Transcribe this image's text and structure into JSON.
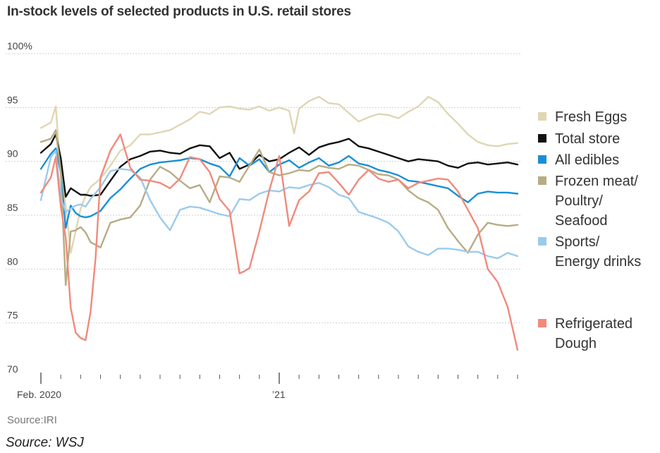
{
  "chart_data": {
    "type": "line",
    "title": "In-stock levels of selected products in U.S. retail stores",
    "ylabel": "",
    "xlabel": "",
    "ylim": [
      70,
      100
    ],
    "y_ticks": [
      "100%",
      "95",
      "90",
      "85",
      "80",
      "75",
      "70"
    ],
    "y_tick_values": [
      100,
      95,
      90,
      85,
      80,
      75,
      70
    ],
    "x_tick_labels": [
      {
        "label": "Feb. 2020",
        "x": 0
      },
      {
        "label": "’21",
        "x": 48
      }
    ],
    "x_range": [
      0,
      96
    ],
    "minor_tick_step": 4,
    "series": [
      {
        "name": "Fresh Eggs",
        "color": "#e0d6b3",
        "x": [
          0,
          2,
          3,
          4,
          5,
          6,
          7,
          8,
          9,
          10,
          12,
          14,
          16,
          18,
          20,
          22,
          24,
          26,
          28,
          30,
          32,
          34,
          36,
          38,
          40,
          42,
          44,
          46,
          48,
          50,
          51,
          52,
          54,
          56,
          58,
          60,
          62,
          64,
          66,
          68,
          70,
          72,
          74,
          76,
          78,
          80,
          82,
          84,
          86,
          88,
          90,
          92,
          94,
          96
        ],
        "values": [
          93.1,
          93.6,
          95.1,
          88.8,
          85.9,
          81.5,
          83.5,
          85.6,
          86.8,
          87.6,
          88.4,
          89.6,
          91.0,
          91.5,
          92.5,
          92.5,
          92.7,
          92.9,
          93.4,
          93.9,
          94.6,
          94.4,
          95.0,
          95.1,
          94.9,
          94.8,
          95.1,
          94.7,
          95.0,
          94.7,
          92.6,
          94.9,
          95.6,
          96.0,
          95.4,
          95.3,
          94.5,
          93.7,
          94.1,
          94.4,
          94.3,
          94.0,
          94.6,
          95.1,
          96.0,
          95.5,
          94.4,
          93.5,
          92.5,
          91.8,
          91.5,
          91.4,
          91.6,
          91.7
        ]
      },
      {
        "name": "Total store",
        "color": "#111111",
        "x": [
          0,
          2,
          3,
          4,
          5,
          6,
          7,
          8,
          9,
          10,
          12,
          14,
          16,
          18,
          20,
          22,
          24,
          26,
          28,
          30,
          32,
          34,
          36,
          38,
          40,
          42,
          44,
          46,
          48,
          50,
          52,
          54,
          56,
          58,
          60,
          62,
          64,
          66,
          68,
          70,
          72,
          74,
          76,
          78,
          80,
          82,
          84,
          86,
          88,
          90,
          92,
          94,
          95,
          96
        ],
        "values": [
          90.8,
          91.6,
          92.5,
          90.3,
          86.7,
          87.5,
          87.2,
          86.9,
          86.9,
          86.8,
          86.9,
          88.2,
          89.5,
          90.2,
          90.5,
          90.9,
          91.0,
          90.8,
          90.7,
          91.2,
          91.5,
          91.4,
          90.3,
          90.8,
          89.3,
          89.7,
          90.6,
          90.0,
          90.2,
          90.8,
          91.3,
          90.6,
          91.3,
          91.6,
          91.8,
          92.1,
          91.4,
          91.2,
          90.9,
          90.6,
          90.3,
          90.0,
          90.2,
          90.1,
          90.0,
          89.6,
          89.4,
          89.8,
          89.9,
          89.7,
          89.8,
          89.9,
          89.8,
          89.7
        ]
      },
      {
        "name": "All edibles",
        "color": "#1a8fd6",
        "x": [
          0,
          2,
          3,
          4,
          5,
          6,
          7,
          8,
          9,
          10,
          12,
          14,
          16,
          18,
          20,
          22,
          24,
          26,
          28,
          30,
          32,
          34,
          36,
          38,
          40,
          42,
          44,
          46,
          48,
          50,
          52,
          54,
          56,
          58,
          60,
          62,
          64,
          66,
          68,
          70,
          72,
          74,
          76,
          78,
          80,
          82,
          84,
          86,
          88,
          90,
          92,
          94,
          96
        ],
        "values": [
          89.3,
          90.7,
          91.2,
          89.0,
          83.8,
          85.9,
          85.2,
          84.9,
          84.8,
          84.9,
          85.4,
          86.6,
          87.4,
          88.4,
          89.3,
          89.7,
          89.9,
          90.0,
          90.1,
          90.3,
          90.2,
          89.8,
          89.5,
          88.6,
          90.3,
          89.6,
          90.2,
          89.0,
          89.7,
          90.1,
          89.4,
          89.9,
          90.3,
          89.6,
          89.9,
          90.5,
          89.8,
          89.6,
          89.2,
          89.0,
          88.7,
          88.2,
          88.1,
          87.9,
          87.7,
          87.5,
          86.8,
          86.2,
          87.0,
          87.2,
          87.1,
          87.1,
          87.0
        ]
      },
      {
        "name": "Frozen meat/\nPoultry/\nSeafood",
        "color": "#b7ac84",
        "x": [
          0,
          2,
          3,
          4,
          5,
          6,
          7,
          8,
          9,
          10,
          12,
          14,
          16,
          18,
          20,
          22,
          24,
          26,
          28,
          30,
          32,
          34,
          36,
          38,
          40,
          42,
          44,
          46,
          48,
          50,
          52,
          54,
          56,
          58,
          60,
          62,
          64,
          66,
          68,
          70,
          72,
          74,
          76,
          78,
          80,
          82,
          84,
          86,
          88,
          90,
          92,
          94,
          96
        ],
        "values": [
          91.8,
          92.1,
          92.9,
          89.0,
          78.5,
          83.5,
          83.6,
          83.9,
          83.4,
          82.5,
          82.0,
          84.3,
          84.6,
          84.8,
          85.9,
          88.3,
          89.5,
          89.0,
          88.2,
          87.5,
          87.8,
          86.2,
          88.6,
          88.5,
          88.1,
          89.6,
          91.1,
          89.0,
          88.7,
          88.9,
          89.2,
          89.1,
          89.6,
          89.4,
          89.3,
          89.7,
          89.6,
          89.2,
          88.8,
          88.7,
          88.3,
          87.3,
          86.6,
          86.2,
          85.5,
          83.8,
          82.6,
          81.5,
          83.2,
          84.3,
          84.1,
          84.0,
          84.1
        ]
      },
      {
        "name": "Sports/\nEnergy drinks",
        "color": "#9acbed",
        "x": [
          0,
          2,
          3,
          4,
          5,
          6,
          7,
          8,
          9,
          10,
          12,
          14,
          16,
          18,
          20,
          22,
          24,
          26,
          28,
          30,
          32,
          34,
          36,
          38,
          40,
          42,
          44,
          46,
          48,
          50,
          52,
          54,
          56,
          58,
          60,
          62,
          64,
          66,
          68,
          70,
          72,
          74,
          76,
          78,
          80,
          82,
          84,
          86,
          88,
          90,
          92,
          94,
          96
        ],
        "values": [
          86.4,
          90.4,
          91.0,
          86.6,
          85.3,
          85.6,
          85.9,
          86.0,
          85.8,
          86.5,
          87.6,
          89.1,
          89.3,
          89.2,
          88.5,
          86.4,
          84.8,
          83.6,
          85.5,
          85.8,
          85.7,
          85.4,
          85.1,
          84.9,
          86.5,
          86.4,
          87.0,
          87.3,
          87.2,
          87.6,
          87.5,
          87.8,
          88.0,
          87.6,
          86.9,
          86.6,
          85.3,
          85.0,
          84.7,
          84.3,
          83.5,
          82.1,
          81.6,
          81.3,
          81.9,
          81.9,
          81.8,
          81.6,
          81.6,
          81.2,
          81.0,
          81.5,
          81.2
        ]
      },
      {
        "name": "Refrigerated\nDough",
        "color": "#f08a7c",
        "x": [
          0,
          2,
          3,
          4,
          5,
          6,
          7,
          8,
          9,
          10,
          11,
          12,
          14,
          16,
          18,
          20,
          22,
          24,
          26,
          28,
          30,
          32,
          34,
          36,
          38,
          40,
          41,
          42,
          44,
          46,
          48,
          50,
          52,
          54,
          56,
          58,
          60,
          62,
          64,
          66,
          68,
          70,
          72,
          74,
          76,
          78,
          80,
          82,
          84,
          86,
          88,
          90,
          92,
          94,
          96
        ],
        "values": [
          87.1,
          88.5,
          90.4,
          85.8,
          82.9,
          76.4,
          74.1,
          73.6,
          73.4,
          76.0,
          81.0,
          88.5,
          91.0,
          92.5,
          89.4,
          88.3,
          88.2,
          88.0,
          87.5,
          88.4,
          90.4,
          90.2,
          89.0,
          86.5,
          85.4,
          79.6,
          79.8,
          80.1,
          83.5,
          87.3,
          90.5,
          84.0,
          86.4,
          87.2,
          88.9,
          89.0,
          88.0,
          86.9,
          88.3,
          89.2,
          88.4,
          88.1,
          88.3,
          87.5,
          88.0,
          88.2,
          88.4,
          88.3,
          87.2,
          85.5,
          83.8,
          80.0,
          78.8,
          76.5,
          72.5
        ]
      }
    ]
  },
  "legend": [
    {
      "label": "Fresh Eggs",
      "color": "#e0d6b3",
      "lines": [
        "Fresh Eggs"
      ]
    },
    {
      "label": "Total store",
      "color": "#111111",
      "lines": [
        "Total store"
      ]
    },
    {
      "label": "All edibles",
      "color": "#1a8fd6",
      "lines": [
        "All edibles"
      ]
    },
    {
      "label": "Frozen meat/ Poultry/ Seafood",
      "color": "#b7ac84",
      "lines": [
        "Frozen meat/",
        "Poultry/",
        "Seafood"
      ]
    },
    {
      "label": "Sports/ Energy drinks",
      "color": "#9acbed",
      "lines": [
        "Sports/",
        "Energy drinks"
      ]
    },
    {
      "label": "Refrigerated Dough",
      "color": "#f08a7c",
      "lines": [
        "Refrigerated",
        "Dough"
      ]
    }
  ],
  "source": "Source:IRI",
  "caption": "Source: WSJ"
}
